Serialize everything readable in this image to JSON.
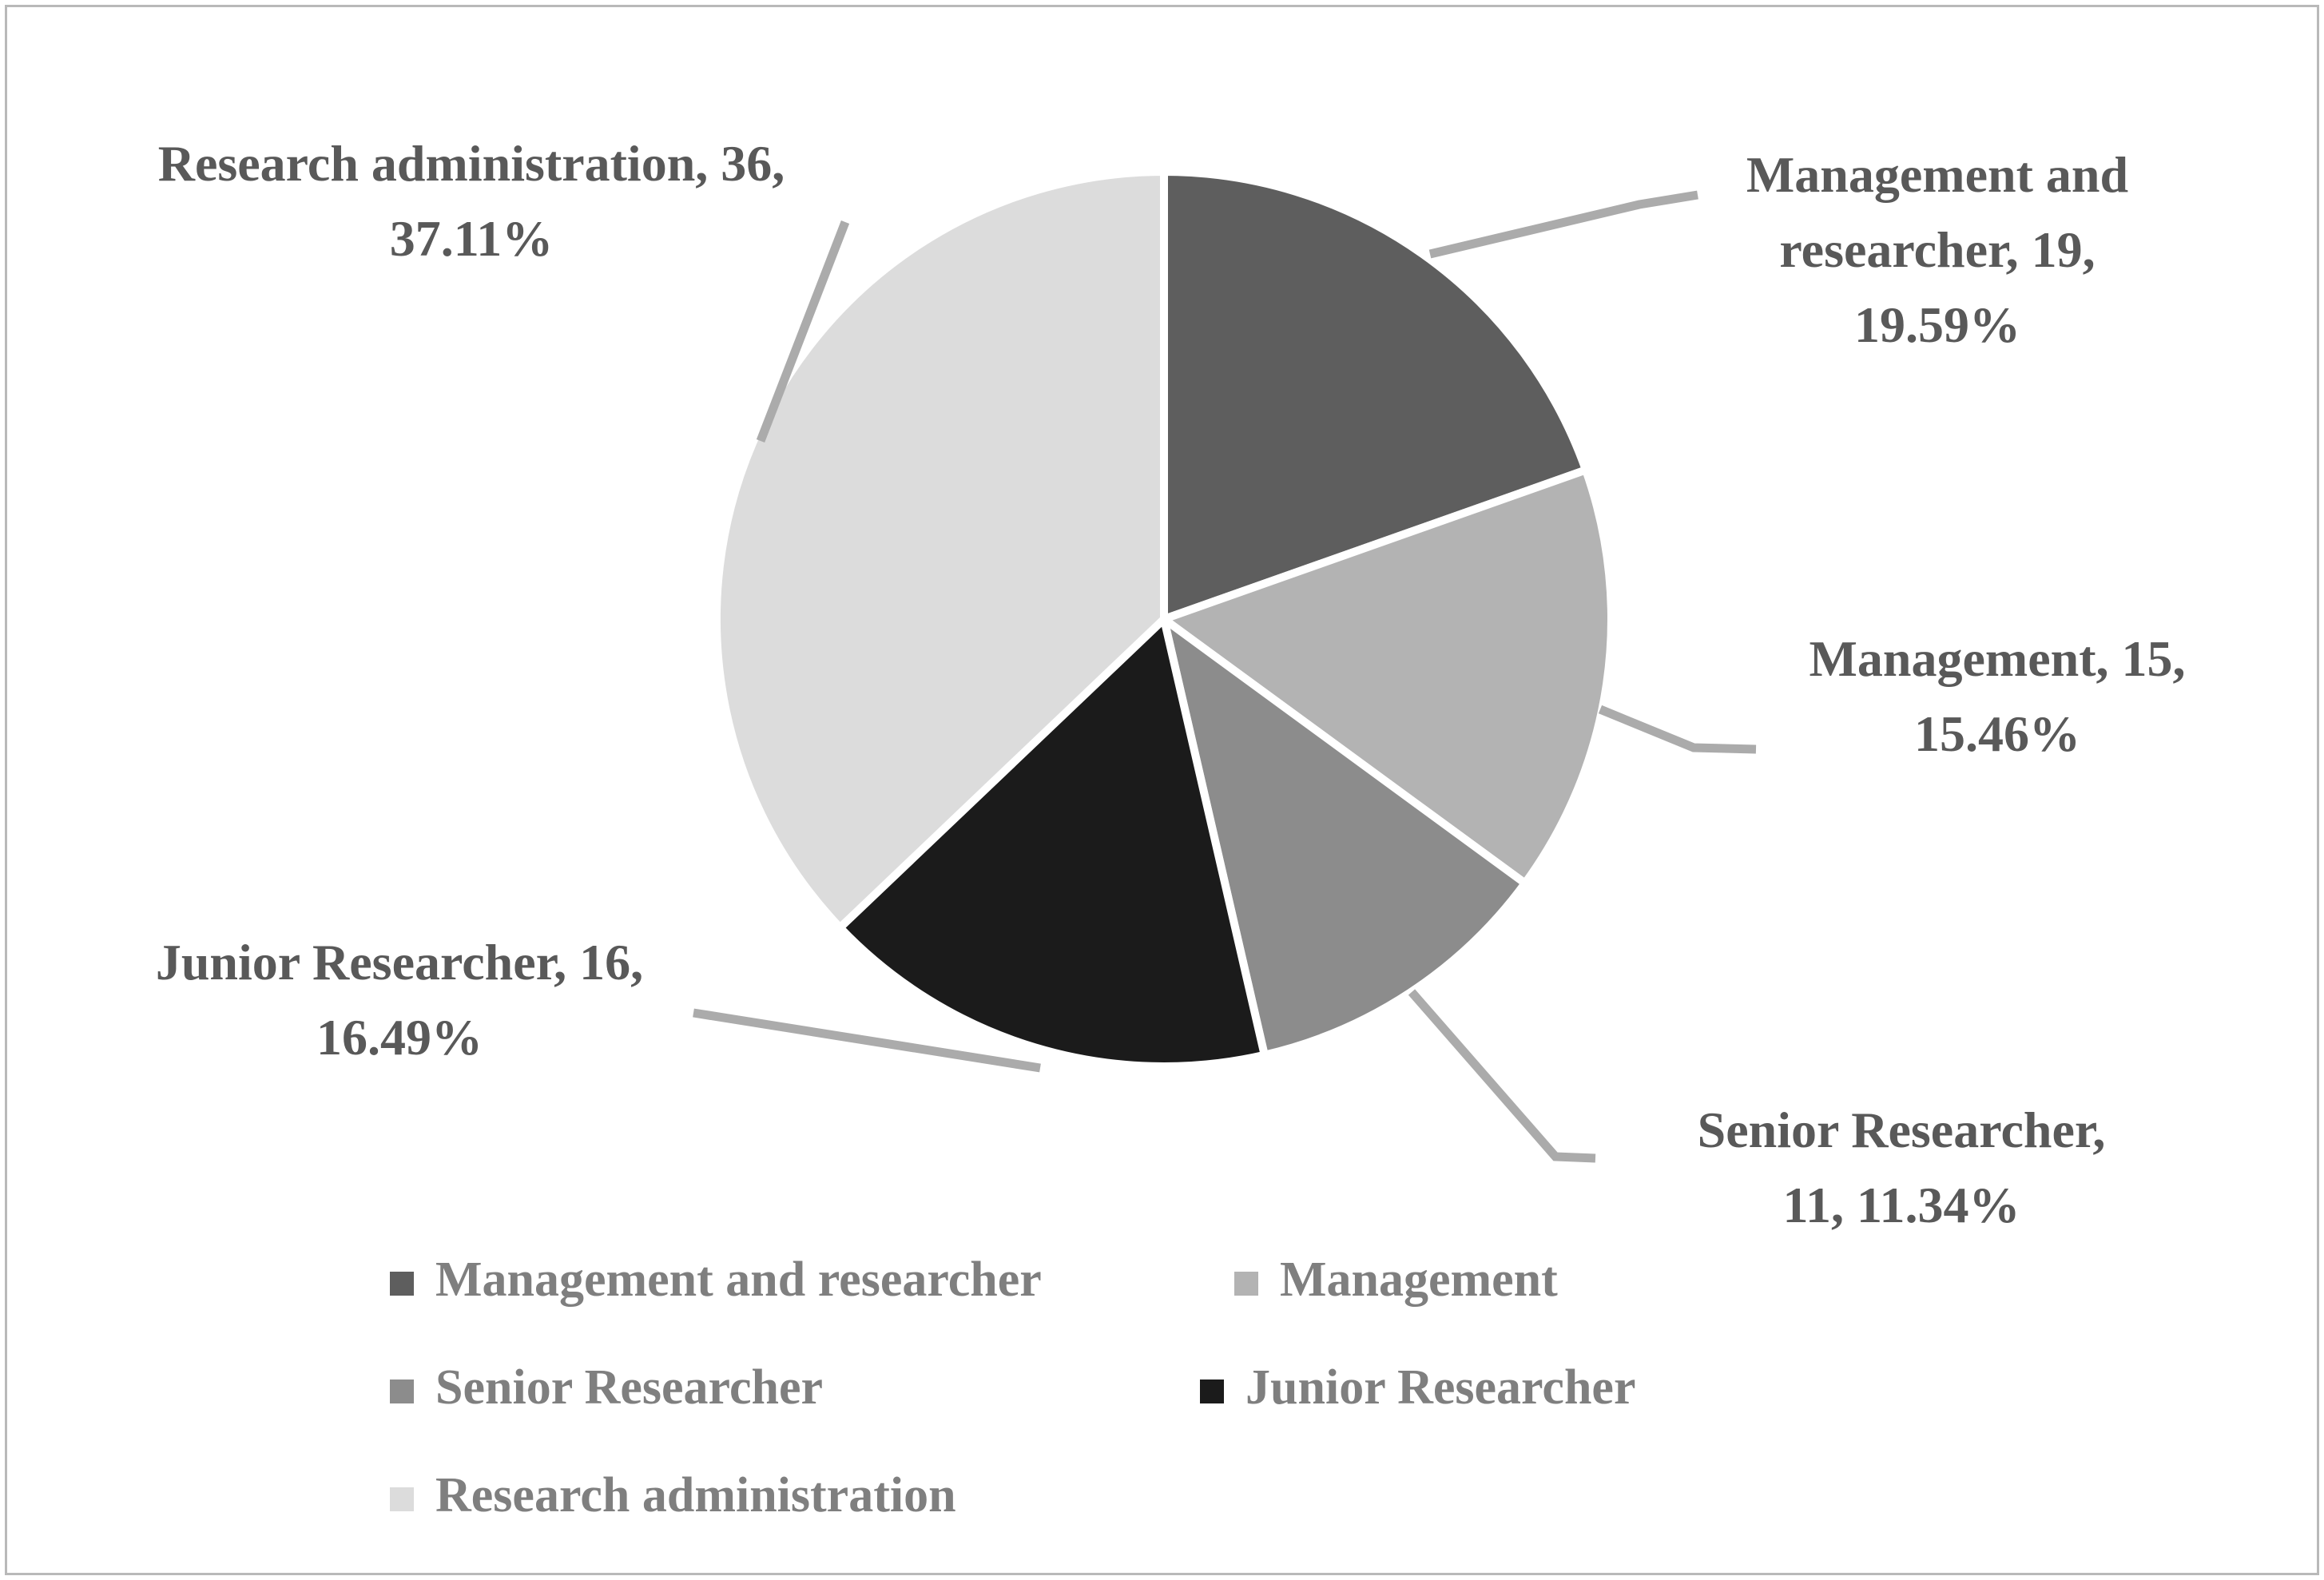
{
  "figure": {
    "background": "#ffffff",
    "border_color": "#b9b9b9"
  },
  "chart_data": {
    "type": "pie",
    "title": "",
    "start_angle_deg": 0,
    "direction": "clockwise",
    "legend_position": "bottom",
    "label_text_color": "#595959",
    "legend_text_color": "#7f7f7f",
    "leader_line_color": "#ababab",
    "slice_border_color": "#ffffff",
    "slices": [
      {
        "name": "Management and researcher",
        "value": 19,
        "percent": 19.59,
        "color": "#5e5e5e",
        "label_lines": [
          "Management and",
          "researcher, 19,",
          "19.59%"
        ]
      },
      {
        "name": "Management",
        "value": 15,
        "percent": 15.46,
        "color": "#b3b3b3",
        "label_lines": [
          "Management, 15,",
          "15.46%"
        ]
      },
      {
        "name": "Senior Researcher",
        "value": 11,
        "percent": 11.34,
        "color": "#8c8c8c",
        "label_lines": [
          "Senior Researcher,",
          "11, 11.34%"
        ]
      },
      {
        "name": "Junior Researcher",
        "value": 16,
        "percent": 16.49,
        "color": "#1b1b1b",
        "label_lines": [
          "Junior Researcher, 16,",
          "16.49%"
        ]
      },
      {
        "name": "Research administration",
        "value": 36,
        "percent": 37.11,
        "color": "#dcdcdc",
        "label_lines": [
          "Research administration, 36,",
          "37.11%"
        ]
      }
    ],
    "legend_items": [
      "Management and researcher",
      "Management",
      "Senior Researcher",
      "Junior Researcher",
      "Research administration"
    ]
  }
}
